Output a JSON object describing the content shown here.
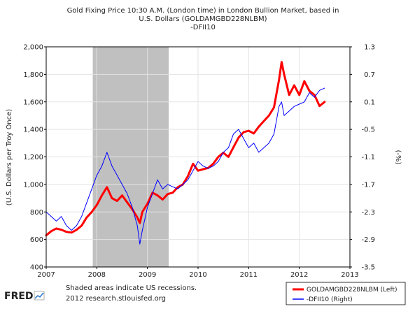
{
  "chart_data": {
    "type": "line",
    "title_lines": [
      "Gold Fixing Price 10:30 A.M. (London time) in London Bullion Market, based in",
      "U.S. Dollars (GOLDAMGBD228NLBM)",
      "-DFII10"
    ],
    "ylabel_left": "(U.S. Dollars per Troy Once)",
    "ylabel_right": "(-%)",
    "x_ticks": [
      "2007",
      "2008",
      "2009",
      "2010",
      "2011",
      "2012",
      "2013"
    ],
    "xlim": [
      2007,
      2013
    ],
    "ylim_left": [
      400,
      2000
    ],
    "ylim_right": [
      -3.5,
      1.3
    ],
    "left_ticks": [
      "400",
      "600",
      "800",
      "1,000",
      "1,200",
      "1,400",
      "1,600",
      "1,800",
      "2,000"
    ],
    "right_ticks": [
      "-3.5",
      "-2.9",
      "-2.3",
      "-1.7",
      "-1.1",
      "-0.5",
      "0.1",
      "0.7",
      "1.3"
    ],
    "recession": {
      "start": 2007.92,
      "end": 2009.42,
      "color": "#c0c0c0"
    },
    "series": [
      {
        "name": "GOLDAMGBD228NLBM (Left)",
        "axis": "left",
        "color": "#ff0000",
        "x": [
          2007.0,
          2007.1,
          2007.2,
          2007.3,
          2007.4,
          2007.5,
          2007.6,
          2007.7,
          2007.8,
          2007.9,
          2008.0,
          2008.1,
          2008.2,
          2008.3,
          2008.4,
          2008.5,
          2008.6,
          2008.7,
          2008.8,
          2008.85,
          2008.9,
          2009.0,
          2009.1,
          2009.2,
          2009.3,
          2009.4,
          2009.5,
          2009.6,
          2009.7,
          2009.8,
          2009.9,
          2010.0,
          2010.1,
          2010.2,
          2010.3,
          2010.4,
          2010.5,
          2010.6,
          2010.7,
          2010.8,
          2010.9,
          2011.0,
          2011.1,
          2011.2,
          2011.3,
          2011.4,
          2011.5,
          2011.6,
          2011.65,
          2011.7,
          2011.8,
          2011.9,
          2012.0,
          2012.1,
          2012.2,
          2012.3,
          2012.4,
          2012.5
        ],
        "values": [
          630,
          660,
          680,
          670,
          655,
          650,
          670,
          700,
          760,
          800,
          850,
          920,
          980,
          900,
          880,
          920,
          870,
          820,
          760,
          720,
          800,
          860,
          940,
          920,
          890,
          930,
          940,
          980,
          1000,
          1060,
          1150,
          1100,
          1110,
          1120,
          1150,
          1200,
          1230,
          1200,
          1270,
          1340,
          1380,
          1390,
          1370,
          1420,
          1460,
          1500,
          1560,
          1760,
          1890,
          1800,
          1650,
          1720,
          1650,
          1750,
          1680,
          1650,
          1570,
          1600
        ]
      },
      {
        "name": "-DFII10 (Right)",
        "axis": "right",
        "color": "#0000ff",
        "x": [
          2007.0,
          2007.1,
          2007.2,
          2007.3,
          2007.4,
          2007.5,
          2007.6,
          2007.7,
          2007.8,
          2007.9,
          2008.0,
          2008.1,
          2008.2,
          2008.3,
          2008.4,
          2008.5,
          2008.6,
          2008.7,
          2008.8,
          2008.85,
          2008.9,
          2009.0,
          2009.1,
          2009.2,
          2009.3,
          2009.4,
          2009.5,
          2009.6,
          2009.7,
          2009.8,
          2009.9,
          2010.0,
          2010.1,
          2010.2,
          2010.3,
          2010.4,
          2010.5,
          2010.6,
          2010.7,
          2010.8,
          2010.9,
          2011.0,
          2011.1,
          2011.2,
          2011.3,
          2011.4,
          2011.5,
          2011.6,
          2011.65,
          2011.7,
          2011.8,
          2011.9,
          2012.0,
          2012.1,
          2012.2,
          2012.3,
          2012.4,
          2012.5
        ],
        "values": [
          -2.3,
          -2.4,
          -2.5,
          -2.4,
          -2.6,
          -2.7,
          -2.6,
          -2.4,
          -2.1,
          -1.8,
          -1.5,
          -1.3,
          -1.0,
          -1.3,
          -1.5,
          -1.7,
          -1.9,
          -2.2,
          -2.6,
          -3.0,
          -2.7,
          -2.2,
          -1.9,
          -1.6,
          -1.8,
          -1.7,
          -1.75,
          -1.8,
          -1.7,
          -1.6,
          -1.4,
          -1.2,
          -1.3,
          -1.35,
          -1.3,
          -1.2,
          -1.0,
          -0.9,
          -0.6,
          -0.5,
          -0.7,
          -0.9,
          -0.8,
          -1.0,
          -0.9,
          -0.8,
          -0.6,
          0.0,
          0.1,
          -0.2,
          -0.1,
          0.0,
          0.05,
          0.1,
          0.3,
          0.2,
          0.35,
          0.4
        ]
      }
    ]
  },
  "footer": {
    "logo": "FRED",
    "note_line1": "Shaded areas indicate US recessions.",
    "note_line2": "2012 research.stlouisfed.org"
  }
}
